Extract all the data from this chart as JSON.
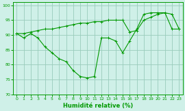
{
  "xlabel": "Humidité relative (%)",
  "bg_color": "#cff0e8",
  "grid_color": "#99ccbb",
  "line_color": "#009900",
  "xlim": [
    -0.5,
    23.5
  ],
  "ylim": [
    70,
    101
  ],
  "xticks": [
    0,
    1,
    2,
    3,
    4,
    5,
    6,
    7,
    8,
    9,
    10,
    11,
    12,
    13,
    14,
    15,
    16,
    17,
    18,
    19,
    20,
    21,
    22,
    23
  ],
  "yticks": [
    70,
    75,
    80,
    85,
    90,
    95,
    100
  ],
  "series1_x": [
    0,
    1,
    2,
    3,
    4,
    5,
    6,
    7,
    8,
    9,
    10,
    11,
    12,
    13,
    14,
    15,
    16,
    17,
    18,
    19,
    20,
    21,
    22,
    23
  ],
  "series1_y": [
    90.5,
    89,
    90.5,
    89,
    86,
    84,
    82,
    81,
    78,
    76,
    75.5,
    76,
    89,
    89,
    88,
    84,
    88,
    92,
    97,
    97.5,
    97.5,
    97.5,
    97,
    92
  ],
  "series2_x": [
    0,
    1,
    2,
    3,
    4,
    5,
    6,
    7,
    8,
    9,
    10,
    11,
    12,
    13,
    14,
    15,
    16,
    17,
    18,
    19,
    20,
    21,
    22,
    23
  ],
  "series2_y": [
    90.5,
    90.5,
    91,
    91.5,
    92,
    92,
    92.5,
    93,
    93.5,
    94,
    94,
    94.5,
    94.5,
    95,
    95,
    95,
    91,
    91.5,
    95,
    96,
    97,
    97.5,
    92,
    92
  ]
}
